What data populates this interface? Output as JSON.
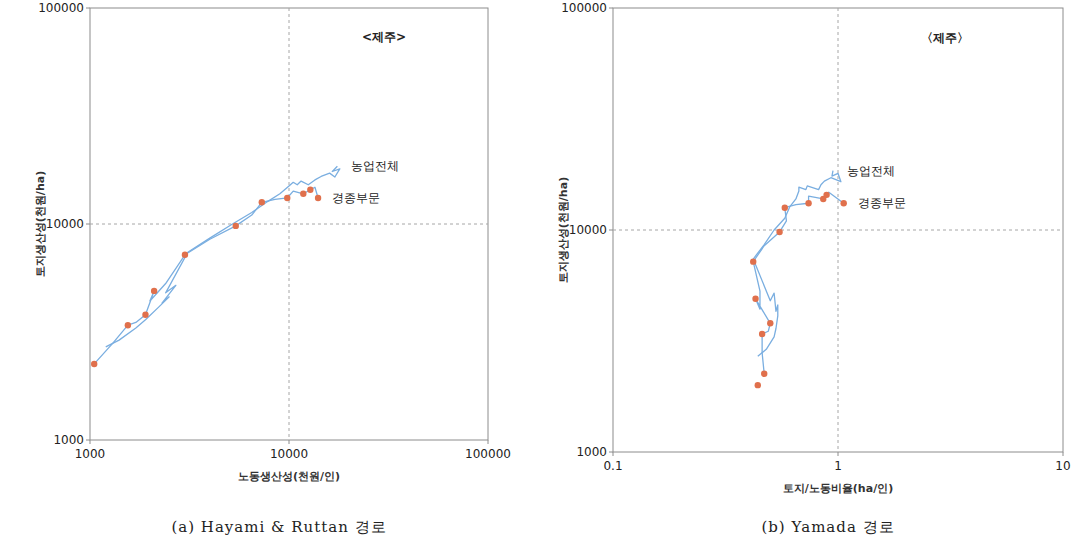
{
  "chart_data": [
    {
      "type": "line",
      "title": "(a) Hayami & Ruttan 경로",
      "x_label": "노동생산성(천원/인)",
      "y_label": "토지생산성(천원/ha)",
      "log": true,
      "grid": true,
      "xlim": [
        1000,
        100000
      ],
      "ylim": [
        1000,
        100000
      ],
      "xticks": [
        1000,
        10000,
        100000
      ],
      "yticks": [
        1000,
        10000,
        100000
      ],
      "annotations": [
        {
          "text": "<제주>",
          "x": 30000,
          "y": 70000
        }
      ],
      "series": [
        {
          "name": "농업전체",
          "color": "#7aaee0",
          "line_style": "solid",
          "x": [
            1200,
            1400,
            1700,
            1900,
            2200,
            2500,
            2300,
            2700,
            2400,
            3100,
            4000,
            5200,
            6500,
            7800,
            9000,
            10000,
            10500,
            11000,
            11500,
            12500,
            13500,
            14500,
            16000,
            17000,
            18000,
            16500,
            17500
          ],
          "values": [
            2700,
            2900,
            3300,
            3600,
            4100,
            4600,
            4300,
            5200,
            4800,
            7400,
            8600,
            10000,
            11300,
            12700,
            13800,
            15000,
            15600,
            15200,
            15800,
            15200,
            16000,
            16600,
            17200,
            16500,
            18000,
            17500,
            18500
          ]
        },
        {
          "name": "경종부문",
          "color": "#7aaee0",
          "line_style": "solid",
          "x": [
            1050,
            1300,
            1550,
            1700,
            1900,
            2100,
            2000,
            2400,
            3000,
            4000,
            5400,
            6500,
            7300,
            8500,
            9800,
            10500,
            11800,
            12800,
            13500,
            14000
          ],
          "values": [
            2250,
            2800,
            3400,
            3500,
            3800,
            4900,
            4400,
            5300,
            7200,
            8500,
            9800,
            11000,
            12600,
            13000,
            13200,
            14200,
            13800,
            14400,
            14800,
            13200
          ]
        },
        {
          "type": "scatter",
          "marker": "circle",
          "color": "#e0704c",
          "x": [
            1050,
            1550,
            1900,
            2100,
            3000,
            5400,
            7300,
            9800,
            11800,
            12800,
            14000
          ],
          "values": [
            2250,
            3400,
            3800,
            4900,
            7200,
            9800,
            12600,
            13200,
            13800,
            14400,
            13200
          ]
        }
      ]
    },
    {
      "type": "line",
      "title": "(b) Yamada 경로",
      "x_label": "토지/노동비율(ha/인)",
      "y_label": "토지생산성(천원/ha)",
      "log": true,
      "grid": true,
      "xlim": [
        0.1,
        10
      ],
      "ylim": [
        1000,
        100000
      ],
      "xticks": [
        0.1,
        1,
        10
      ],
      "yticks": [
        1000,
        10000,
        100000
      ],
      "annotations": [
        {
          "text": "〈제주〉",
          "x": 3,
          "y": 70000
        }
      ],
      "series": [
        {
          "name": "농업전체",
          "color": "#7aaee0",
          "line_style": "solid",
          "x": [
            0.44,
            0.48,
            0.52,
            0.53,
            0.54,
            0.54,
            0.53,
            0.52,
            0.5,
            0.42,
            0.47,
            0.52,
            0.58,
            0.61,
            0.65,
            0.67,
            0.67,
            0.72,
            0.73,
            0.82,
            0.84,
            0.87,
            0.93,
            1.03,
            1.0,
            0.94,
            0.95
          ],
          "values": [
            2700,
            2900,
            3300,
            3600,
            4100,
            4600,
            4300,
            5200,
            4800,
            7400,
            8600,
            10000,
            11300,
            12700,
            13800,
            15000,
            15600,
            15200,
            15800,
            15200,
            16000,
            16600,
            17200,
            16500,
            18000,
            17500,
            18500
          ]
        },
        {
          "name": "경종부문",
          "color": "#7aaee0",
          "line_style": "solid",
          "x": [
            0.47,
            0.46,
            0.46,
            0.49,
            0.5,
            0.43,
            0.45,
            0.45,
            0.42,
            0.47,
            0.55,
            0.59,
            0.58,
            0.65,
            0.74,
            0.74,
            0.86,
            0.89,
            0.91,
            1.06
          ],
          "values": [
            2250,
            2800,
            3400,
            3500,
            3800,
            4900,
            4400,
            5300,
            7200,
            8500,
            9800,
            11000,
            12600,
            13000,
            13200,
            14200,
            13800,
            14400,
            14800,
            13200
          ]
        },
        {
          "type": "scatter",
          "marker": "circle",
          "color": "#e0704c",
          "x": [
            0.44,
            0.47,
            0.46,
            0.5,
            0.43,
            0.42,
            0.55,
            0.58,
            0.74,
            0.86,
            0.89,
            1.06
          ],
          "values": [
            2000,
            2250,
            3400,
            3800,
            4900,
            7200,
            9800,
            12600,
            13200,
            13800,
            14400,
            13200
          ]
        }
      ]
    }
  ]
}
